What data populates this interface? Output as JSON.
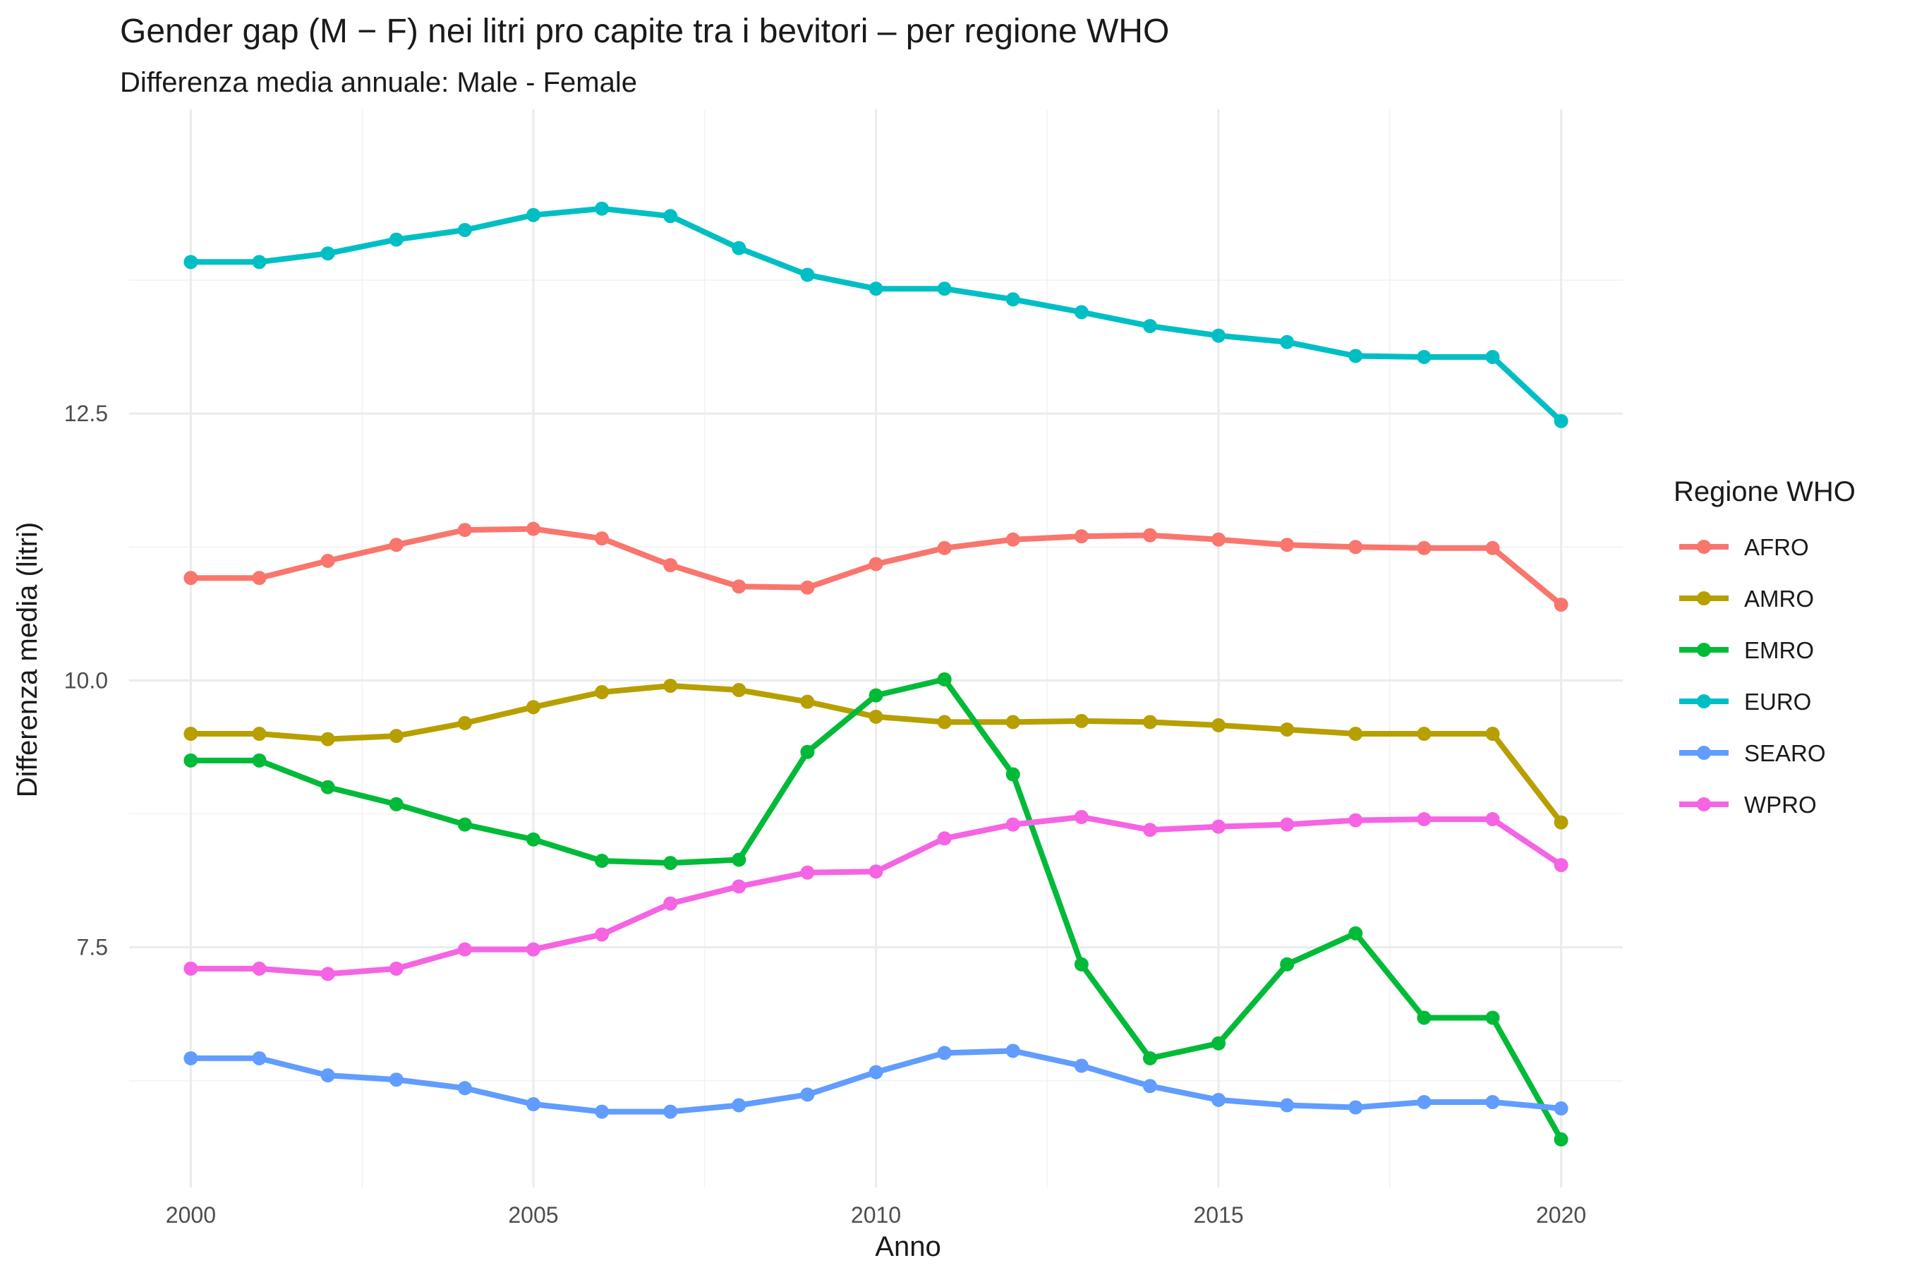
{
  "chart_data": {
    "type": "line",
    "title": "Gender gap (M − F) nei litri pro capite tra i bevitori – per regione WHO",
    "subtitle": "Differenza media annuale: Male - Female",
    "xlabel": "Anno",
    "ylabel": "Differenza media (litri)",
    "xlim": [
      1999.1,
      2020.9
    ],
    "ylim": [
      5.25,
      15.35
    ],
    "x_ticks": [
      2000,
      2005,
      2010,
      2015,
      2020
    ],
    "x_tick_labels": [
      "2000",
      "2005",
      "2010",
      "2015",
      "2020"
    ],
    "y_ticks": [
      7.5,
      10.0,
      12.5
    ],
    "y_tick_labels": [
      "7.5",
      "10.0",
      "12.5"
    ],
    "grid": true,
    "legend": {
      "title": "Regione WHO",
      "position": "right"
    },
    "x": [
      2000,
      2001,
      2002,
      2003,
      2004,
      2005,
      2006,
      2007,
      2008,
      2009,
      2010,
      2011,
      2012,
      2013,
      2014,
      2015,
      2016,
      2017,
      2018,
      2019,
      2020
    ],
    "series": [
      {
        "name": "AFRO",
        "color": "#F8766D",
        "values": [
          10.96,
          10.96,
          11.12,
          11.27,
          11.41,
          11.42,
          11.33,
          11.08,
          10.88,
          10.87,
          11.09,
          11.24,
          11.32,
          11.35,
          11.36,
          11.32,
          11.27,
          11.25,
          11.24,
          11.24,
          10.71
        ]
      },
      {
        "name": "AMRO",
        "color": "#B79F00",
        "values": [
          9.5,
          9.5,
          9.45,
          9.48,
          9.6,
          9.75,
          9.89,
          9.95,
          9.91,
          9.8,
          9.66,
          9.61,
          9.61,
          9.62,
          9.61,
          9.58,
          9.54,
          9.5,
          9.5,
          9.5,
          8.67
        ]
      },
      {
        "name": "EMRO",
        "color": "#00BA38",
        "values": [
          9.25,
          9.25,
          9.0,
          8.84,
          8.65,
          8.51,
          8.31,
          8.29,
          8.32,
          9.33,
          9.86,
          10.01,
          9.12,
          7.34,
          6.46,
          6.6,
          7.34,
          7.63,
          6.84,
          6.84,
          5.7
        ]
      },
      {
        "name": "EURO",
        "color": "#00BFC4",
        "values": [
          13.92,
          13.92,
          14.0,
          14.13,
          14.22,
          14.36,
          14.42,
          14.35,
          14.05,
          13.8,
          13.67,
          13.67,
          13.57,
          13.45,
          13.32,
          13.23,
          13.17,
          13.04,
          13.03,
          13.03,
          12.43
        ]
      },
      {
        "name": "SEARO",
        "color": "#619CFF",
        "values": [
          6.46,
          6.46,
          6.3,
          6.26,
          6.18,
          6.03,
          5.96,
          5.96,
          6.02,
          6.12,
          6.33,
          6.51,
          6.53,
          6.39,
          6.2,
          6.07,
          6.02,
          6.0,
          6.05,
          6.05,
          5.99
        ]
      },
      {
        "name": "WPRO",
        "color": "#F564E3",
        "values": [
          7.3,
          7.3,
          7.25,
          7.3,
          7.48,
          7.48,
          7.62,
          7.91,
          8.07,
          8.2,
          8.21,
          8.52,
          8.65,
          8.72,
          8.6,
          8.63,
          8.65,
          8.69,
          8.7,
          8.7,
          8.27
        ]
      }
    ]
  }
}
